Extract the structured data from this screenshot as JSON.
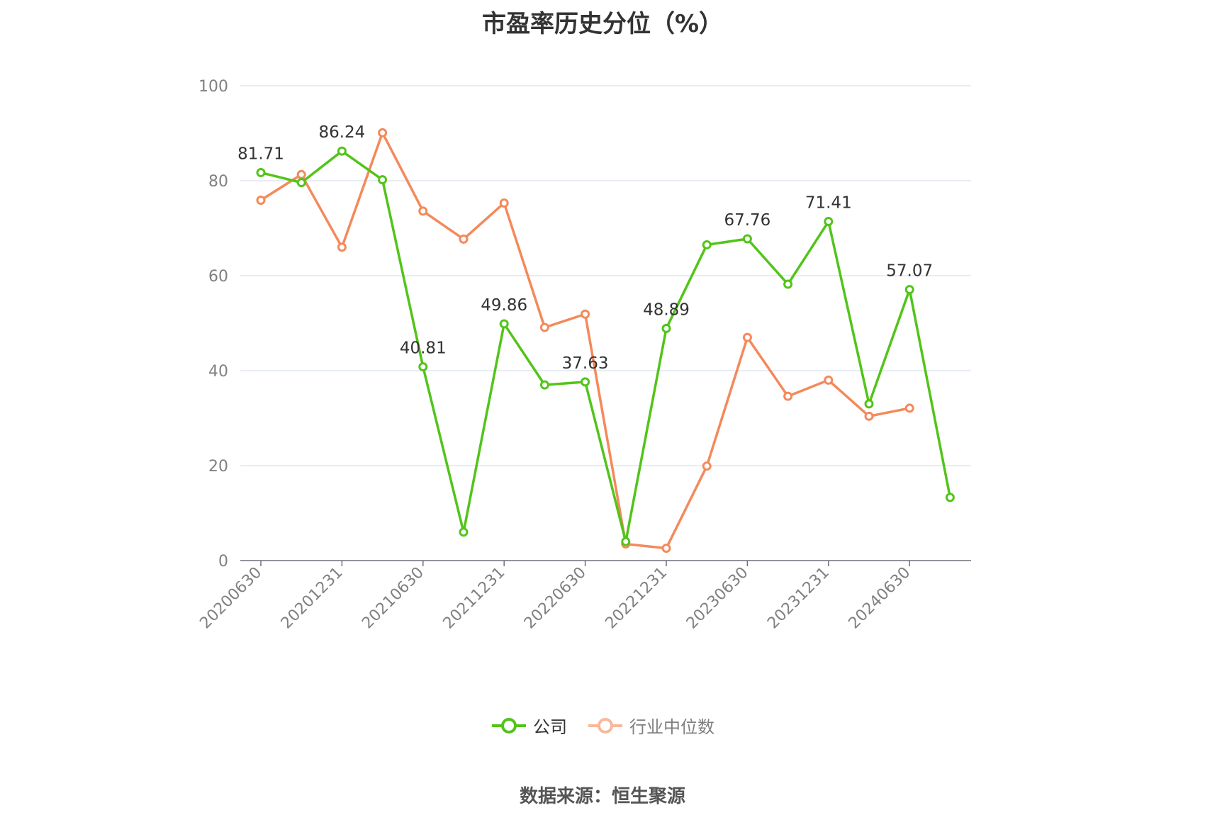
{
  "chart_data": {
    "type": "line",
    "title": "市盈率历史分位（%）",
    "source": "数据来源：恒生聚源",
    "x": [
      "20200630",
      "20200930",
      "20201231",
      "20210331",
      "20210630",
      "20210930",
      "20211231",
      "20220331",
      "20220630",
      "20220930",
      "20221231",
      "20230331",
      "20230630",
      "20230930",
      "20231231",
      "20240331",
      "20240630",
      "20240930"
    ],
    "x_tick_labels": [
      "20200630",
      "20201231",
      "20210630",
      "20211231",
      "20220630",
      "20221231",
      "20230630",
      "20231231",
      "20240630"
    ],
    "ylim": [
      0,
      100
    ],
    "y_ticks": [
      0,
      20,
      40,
      60,
      80,
      100
    ],
    "grid": true,
    "legend_position": "bottom",
    "series": [
      {
        "name": "公司",
        "color": "#52c41a",
        "values": [
          81.71,
          79.6,
          86.24,
          80.2,
          40.81,
          6.0,
          49.86,
          37.0,
          37.63,
          4.0,
          48.89,
          66.5,
          67.76,
          58.2,
          71.41,
          33.0,
          57.07,
          13.3
        ],
        "data_labels": {
          "0": "81.71",
          "2": "86.24",
          "4": "40.81",
          "6": "49.86",
          "8": "37.63",
          "10": "48.89",
          "12": "67.76",
          "14": "71.41",
          "16": "57.07"
        }
      },
      {
        "name": "行业中位数",
        "color": "#f4895a",
        "values": [
          75.9,
          81.3,
          66.0,
          90.1,
          73.6,
          67.7,
          75.3,
          49.1,
          51.9,
          3.5,
          2.6,
          19.9,
          47.0,
          34.6,
          38.0,
          30.4,
          32.1,
          null
        ]
      }
    ]
  }
}
